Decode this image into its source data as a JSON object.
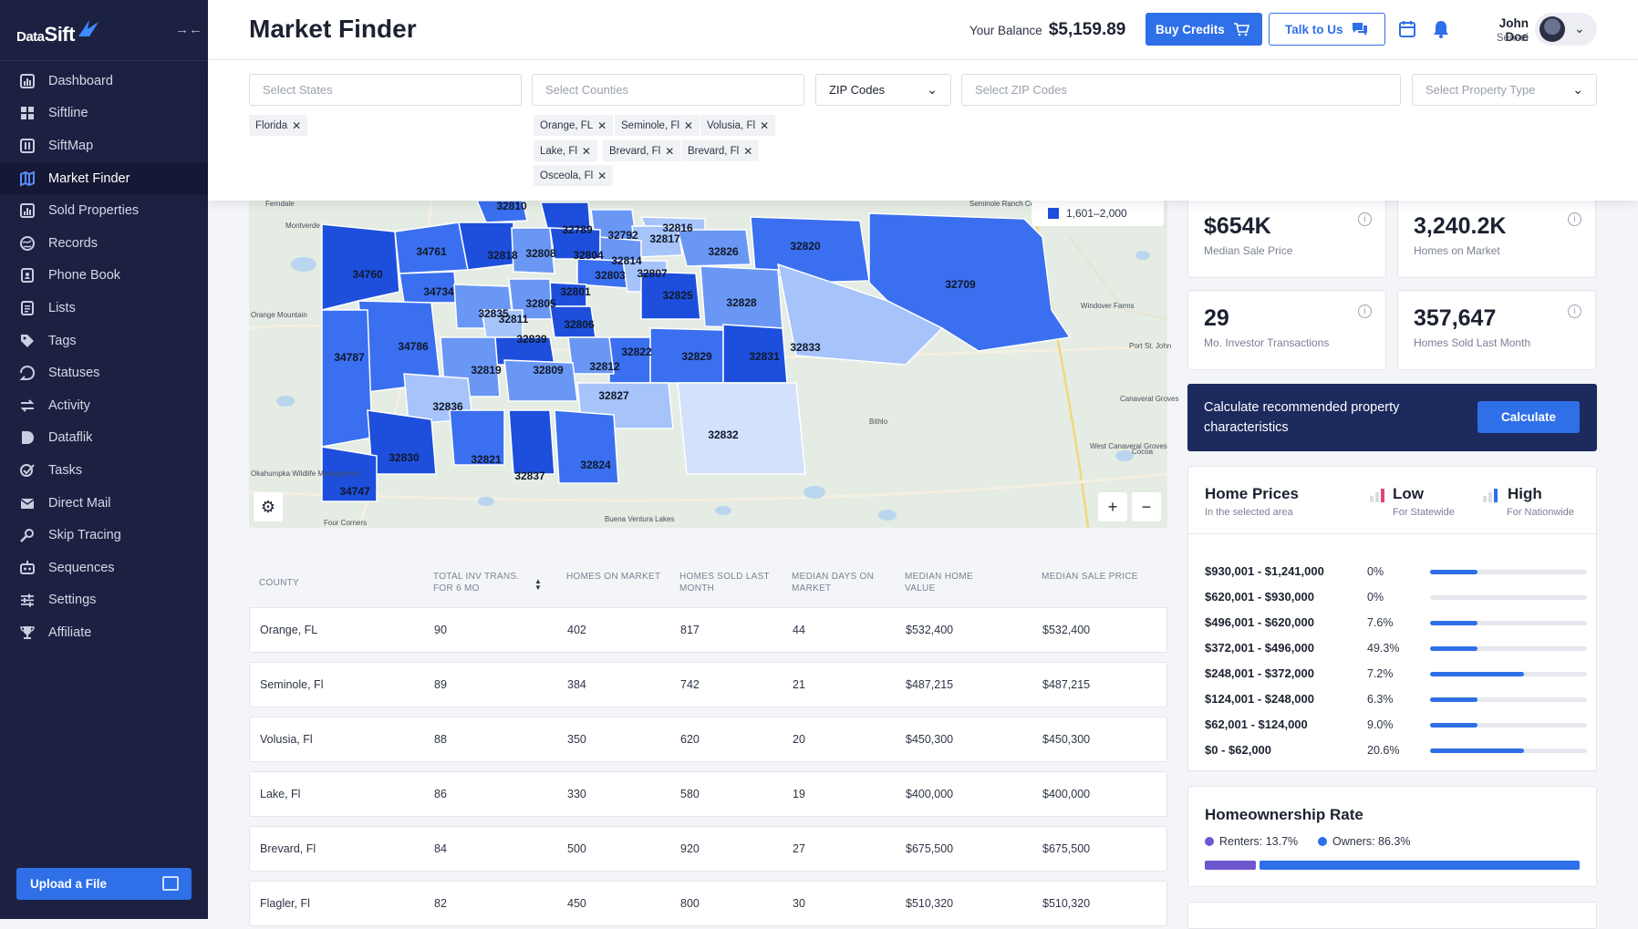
{
  "app": {
    "logo_data": "Data",
    "logo_sift": "Sift"
  },
  "sidebar": {
    "items": [
      {
        "label": "Dashboard",
        "icon": "bar-chart-icon"
      },
      {
        "label": "Siftline",
        "icon": "grid-icon"
      },
      {
        "label": "SiftMap",
        "icon": "map-icon"
      },
      {
        "label": "Market Finder",
        "icon": "market-map-icon",
        "active": true
      },
      {
        "label": "Sold Properties",
        "icon": "sold-chart-icon"
      },
      {
        "label": "Records",
        "icon": "globe-icon"
      },
      {
        "label": "Phone Book",
        "icon": "phone-book-icon"
      },
      {
        "label": "Lists",
        "icon": "list-icon"
      },
      {
        "label": "Tags",
        "icon": "tag-icon"
      },
      {
        "label": "Statuses",
        "icon": "status-icon"
      },
      {
        "label": "Activity",
        "icon": "activity-icon"
      },
      {
        "label": "Dataflik",
        "icon": "dataflik-icon"
      },
      {
        "label": "Tasks",
        "icon": "tasks-icon"
      },
      {
        "label": "Direct Mail",
        "icon": "mail-icon"
      },
      {
        "label": "Skip Tracing",
        "icon": "skip-trace-icon"
      },
      {
        "label": "Sequences",
        "icon": "sequence-icon"
      },
      {
        "label": "Settings",
        "icon": "sliders-icon"
      },
      {
        "label": "Affiliate",
        "icon": "trophy-icon"
      }
    ],
    "upload_label": "Upload a File"
  },
  "header": {
    "title": "Market Finder",
    "balance_label": "Your Balance",
    "balance_value": "$5,159.89",
    "buy_label": "Buy Credits",
    "talk_label": "Talk to Us",
    "user_name": "John Doe",
    "user_role": "Sensei"
  },
  "filters": {
    "states_placeholder": "Select States",
    "counties_placeholder": "Select Counties",
    "zip_mode": "ZIP Codes",
    "zip_placeholder": "Select ZIP Codes",
    "property_placeholder": "Select Property Type",
    "state_chips": [
      "Florida"
    ],
    "county_chips": [
      "Orange, FL",
      "Seminole, Fl",
      "Volusia, Fl",
      "Lake, Fl",
      "Brevard, Fl",
      "Brevard, Fl",
      "Osceola, Fl"
    ]
  },
  "map": {
    "legend_range": "1,601–2,000",
    "place_labels": [
      "Ferndale",
      "Montverde",
      "Orange Mountain",
      "Seminole Ranch Conservation",
      "Windover Farms",
      "Port St. John",
      "Canaveral Groves",
      "West Canaveral Groves",
      "Cocoa",
      "Bithlo",
      "Four Corners",
      "Buena Ventura Lakes",
      "Okahumpka Wildlife Management"
    ],
    "zips": [
      {
        "code": "32810",
        "shade": 1
      },
      {
        "code": "32789",
        "shade": 0
      },
      {
        "code": "32792",
        "shade": 2
      },
      {
        "code": "32816",
        "shade": 3
      },
      {
        "code": "32817",
        "shade": 3
      },
      {
        "code": "32826",
        "shade": 2
      },
      {
        "code": "32820",
        "shade": 1
      },
      {
        "code": "32709",
        "shade": 1
      },
      {
        "code": "34761",
        "shade": 1
      },
      {
        "code": "32818",
        "shade": 0
      },
      {
        "code": "32808",
        "shade": 2
      },
      {
        "code": "32804",
        "shade": 0
      },
      {
        "code": "32814",
        "shade": 2
      },
      {
        "code": "32803",
        "shade": 1
      },
      {
        "code": "32807",
        "shade": 3
      },
      {
        "code": "34760",
        "shade": 0
      },
      {
        "code": "34734",
        "shade": 1
      },
      {
        "code": "32801",
        "shade": 0
      },
      {
        "code": "32805",
        "shade": 2
      },
      {
        "code": "32835",
        "shade": 2
      },
      {
        "code": "32811",
        "shade": 3
      },
      {
        "code": "32806",
        "shade": 0
      },
      {
        "code": "32825",
        "shade": 0
      },
      {
        "code": "32828",
        "shade": 2
      },
      {
        "code": "32833",
        "shade": 3
      },
      {
        "code": "34786",
        "shade": 1
      },
      {
        "code": "32839",
        "shade": 0
      },
      {
        "code": "32822",
        "shade": 1
      },
      {
        "code": "32812",
        "shade": 2
      },
      {
        "code": "32829",
        "shade": 1
      },
      {
        "code": "32831",
        "shade": 0
      },
      {
        "code": "34787",
        "shade": 1
      },
      {
        "code": "32819",
        "shade": 2
      },
      {
        "code": "32809",
        "shade": 2
      },
      {
        "code": "32836",
        "shade": 3
      },
      {
        "code": "32827",
        "shade": 3
      },
      {
        "code": "32832",
        "shade": 4
      },
      {
        "code": "32830",
        "shade": 0
      },
      {
        "code": "32821",
        "shade": 1
      },
      {
        "code": "32837",
        "shade": 0
      },
      {
        "code": "32824",
        "shade": 1
      },
      {
        "code": "34747",
        "shade": 0
      }
    ]
  },
  "table": {
    "columns": [
      "County",
      "Total Inv Trans. for 6 mo",
      "Homes on Market",
      "Homes Sold Last Month",
      "Median Days on Market",
      "Median Home Value",
      "Median Sale Price"
    ],
    "rows": [
      [
        "Orange, FL",
        "90",
        "402",
        "817",
        "44",
        "$532,400",
        "$532,400"
      ],
      [
        "Seminole, Fl",
        "89",
        "384",
        "742",
        "21",
        "$487,215",
        "$487,215"
      ],
      [
        "Volusia, Fl",
        "88",
        "350",
        "620",
        "20",
        "$450,300",
        "$450,300"
      ],
      [
        "Lake, Fl",
        "86",
        "330",
        "580",
        "19",
        "$400,000",
        "$400,000"
      ],
      [
        "Brevard, Fl",
        "84",
        "500",
        "920",
        "27",
        "$675,500",
        "$675,500"
      ],
      [
        "Flagler, Fl",
        "82",
        "450",
        "800",
        "30",
        "$510,320",
        "$510,320"
      ]
    ]
  },
  "stats": [
    {
      "value": "$654K",
      "label": "Median Sale Price"
    },
    {
      "value": "3,240.2K",
      "label": "Homes on Market"
    },
    {
      "value": "29",
      "label": "Mo. Investor Transactions"
    },
    {
      "value": "357,647",
      "label": "Homes Sold Last Month"
    }
  ],
  "calculate": {
    "text": "Calculate recommended property characteristics",
    "button": "Calculate"
  },
  "home_prices": {
    "title": "Home Prices",
    "subtitle": "In the selected area",
    "low_label": "Low",
    "low_sub": "For Statewide",
    "high_label": "High",
    "high_sub": "For Nationwide",
    "rows": [
      {
        "range": "$930,001 - $1,241,000",
        "pct": "0%",
        "bar": 0.3
      },
      {
        "range": "$620,001 - $930,000",
        "pct": "0%",
        "bar": 0.0
      },
      {
        "range": "$496,001 - $620,000",
        "pct": "7.6%",
        "bar": 0.3
      },
      {
        "range": "$372,001 - $496,000",
        "pct": "49.3%",
        "bar": 0.3
      },
      {
        "range": "$248,001 - $372,000",
        "pct": "7.2%",
        "bar": 0.6
      },
      {
        "range": "$124,001 - $248,000",
        "pct": "6.3%",
        "bar": 0.3
      },
      {
        "range": "$62,001 - $124,000",
        "pct": "9.0%",
        "bar": 0.3
      },
      {
        "range": "$0 - $62,000",
        "pct": "20.6%",
        "bar": 0.6
      }
    ]
  },
  "homeownership": {
    "title": "Homeownership Rate",
    "renters_label": "Renters: 13.7%",
    "owners_label": "Owners: 86.3%",
    "renters": 0.137,
    "owners": 0.863,
    "renters_color": "#6e56cf",
    "owners_color": "#2f6fe8"
  }
}
